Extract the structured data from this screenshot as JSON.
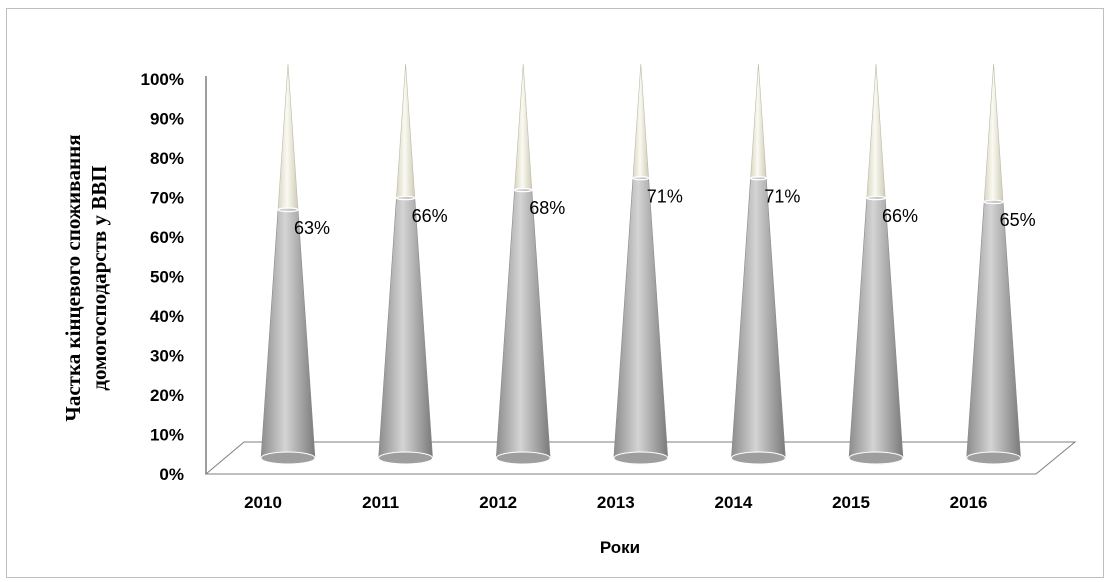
{
  "chart_data": {
    "type": "bar",
    "shape": "cone",
    "categories": [
      "2010",
      "2011",
      "2012",
      "2013",
      "2014",
      "2015",
      "2016"
    ],
    "values": [
      0.63,
      0.66,
      0.68,
      0.71,
      0.71,
      0.66,
      0.65
    ],
    "data_labels": [
      "63%",
      "66%",
      "68%",
      "71%",
      "71%",
      "66%",
      "65%"
    ],
    "yticks": [
      "0%",
      "10%",
      "20%",
      "30%",
      "40%",
      "50%",
      "60%",
      "70%",
      "80%",
      "90%",
      "100%"
    ],
    "ylim": [
      0,
      1
    ],
    "xlabel": "Роки",
    "ylabel": [
      "Частка кінцевого споживання",
      "домогосподарств у ВВП"
    ],
    "grid": false,
    "legend": "none",
    "colors": {
      "value": "#a6a6a6",
      "remainder": "#f2f0e1",
      "floor": "#ffffff",
      "axis": "#7f7f7f"
    }
  }
}
